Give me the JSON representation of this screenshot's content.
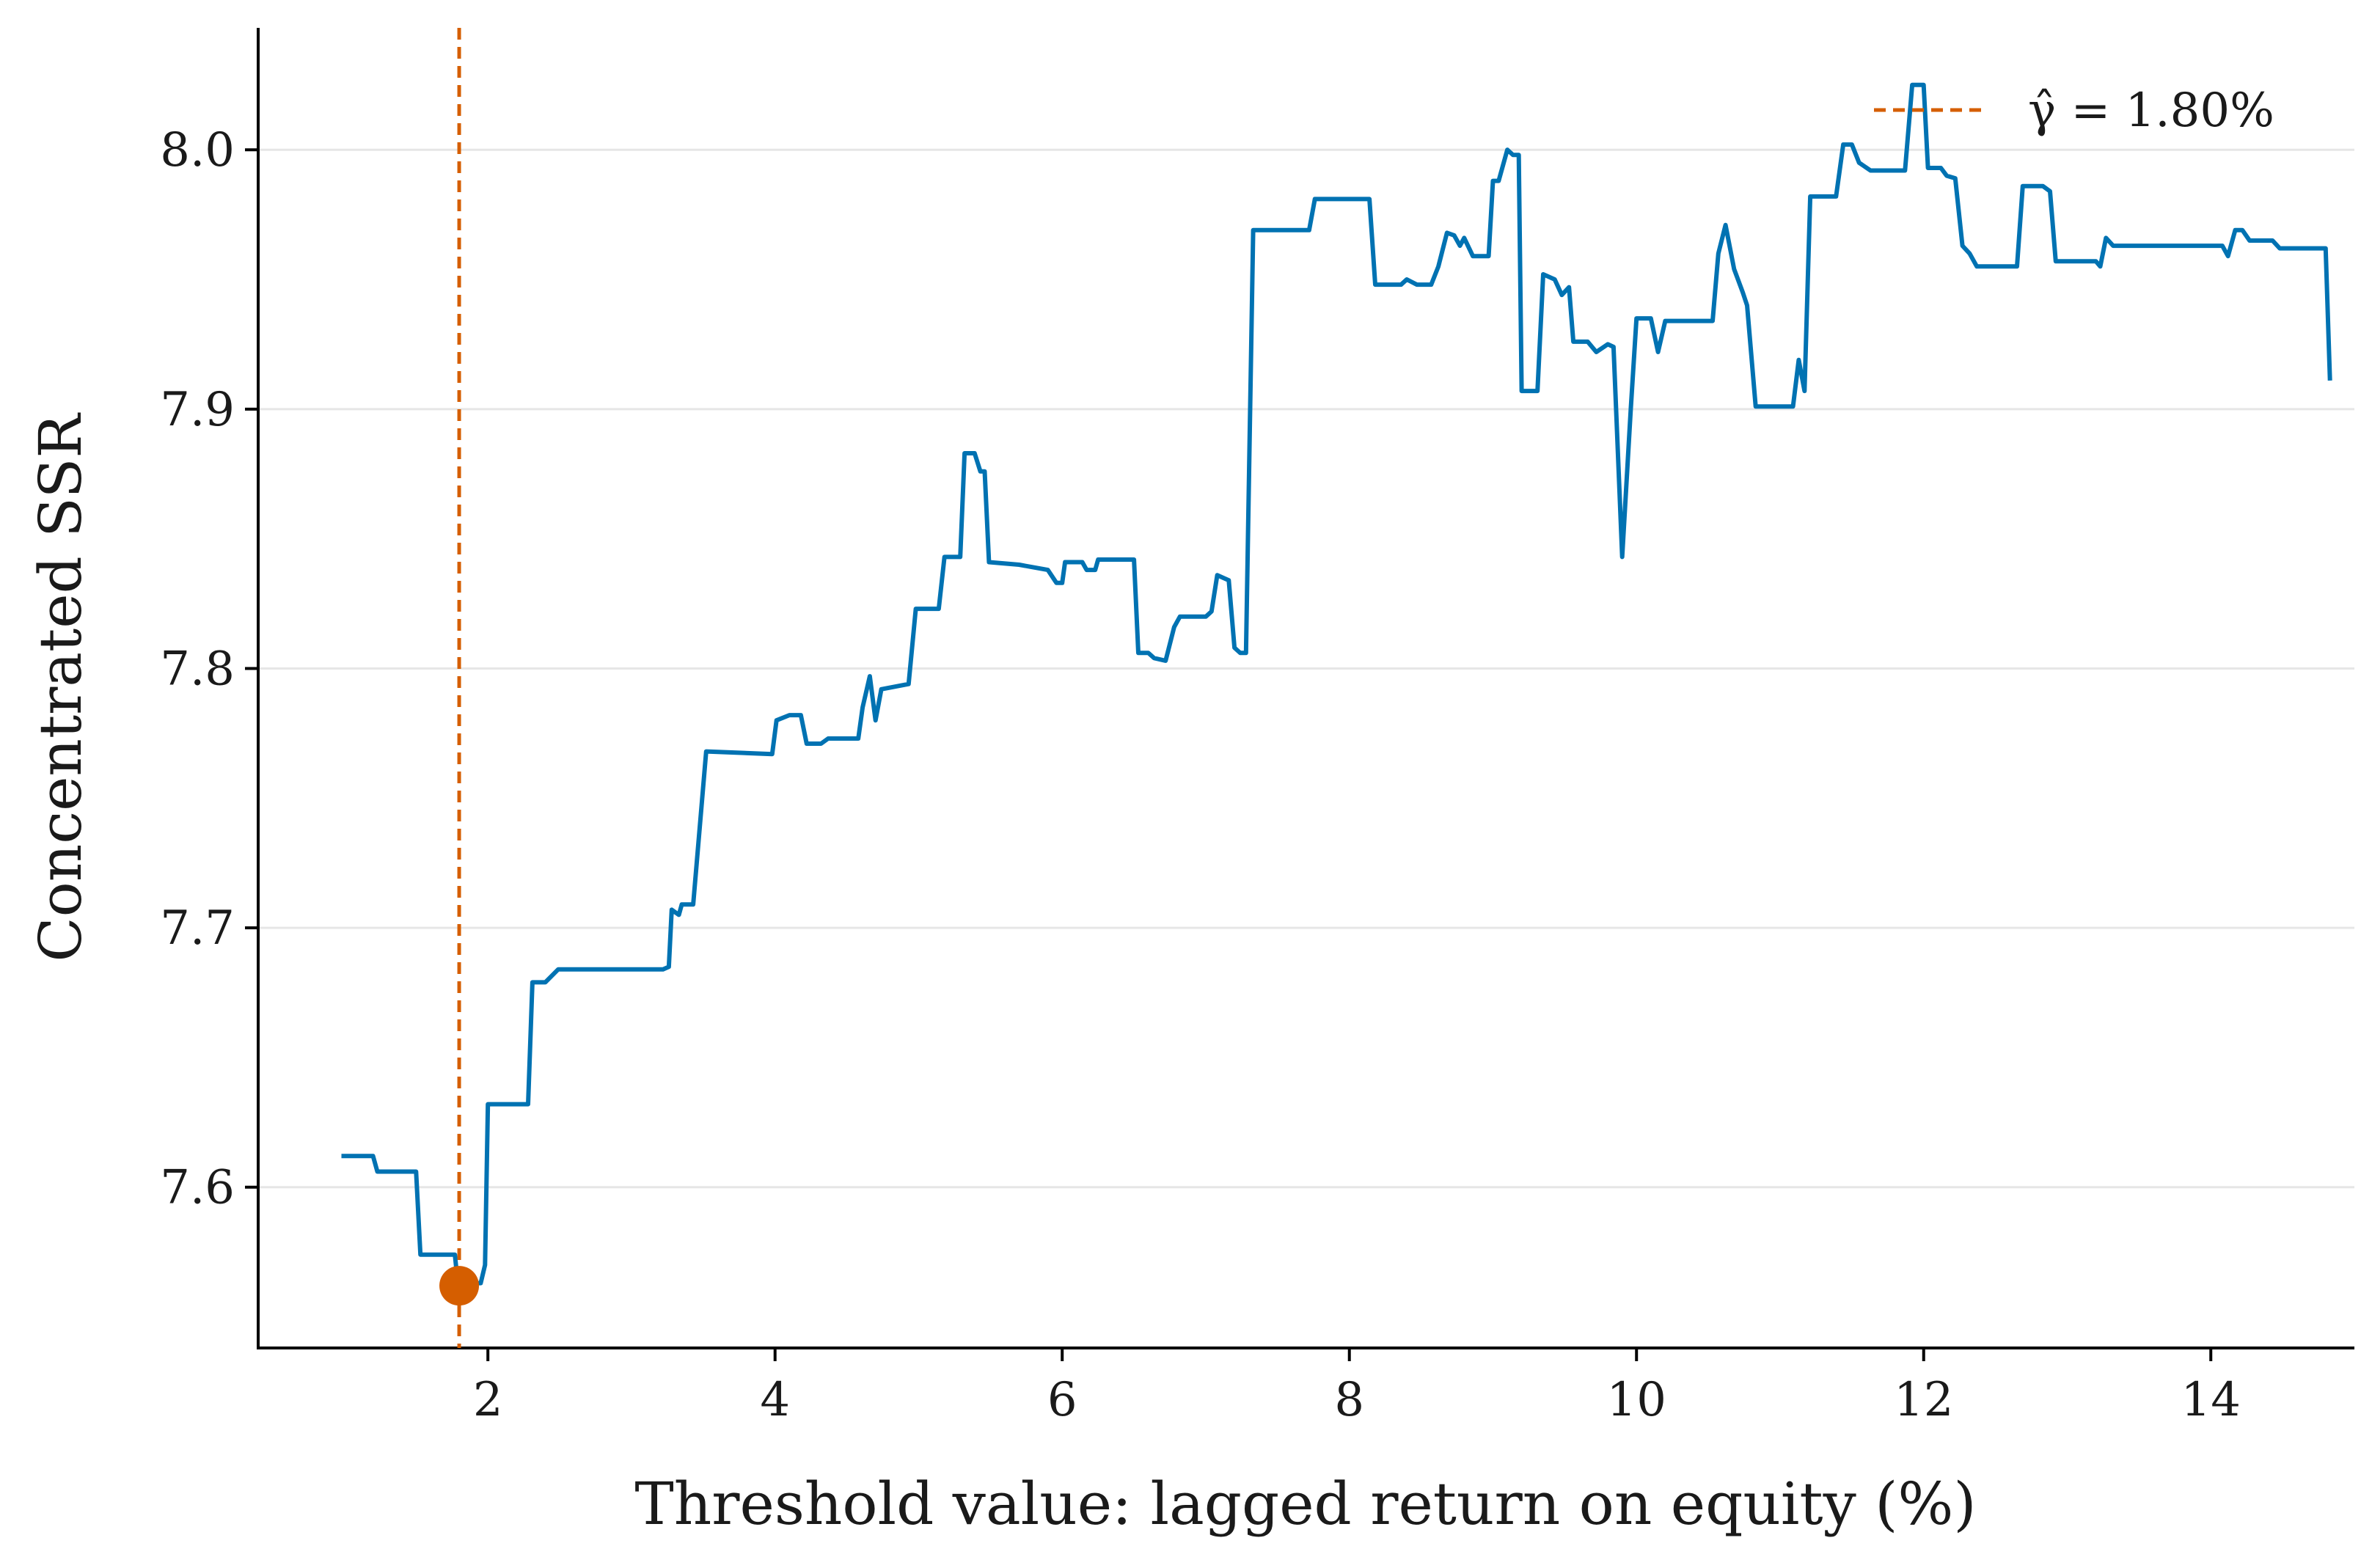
{
  "chart_data": {
    "type": "line",
    "xlabel": "Threshold value: lagged return on equity (%)",
    "ylabel": "Concentrated SSR",
    "xlim": [
      0.4,
      15.0
    ],
    "ylim": [
      7.538,
      8.047
    ],
    "xticks": [
      2,
      4,
      6,
      8,
      10,
      12,
      14
    ],
    "yticks": [
      7.6,
      7.7,
      7.8,
      7.9,
      8.0
    ],
    "ytick_labels": [
      "7.6",
      "7.7",
      "7.8",
      "7.9",
      "8.0"
    ],
    "grid": "horizontal",
    "legend": {
      "placement": "top-right",
      "entries": [
        {
          "label": "γ̂ = 1.80%",
          "style": "dashed",
          "color": "#D55E00"
        }
      ]
    },
    "colors": {
      "series": "#0072B2",
      "threshold": "#D55E00"
    },
    "threshold": {
      "x": 1.8,
      "y": 7.562
    },
    "series": [
      {
        "points": [
          [
            0.98,
            7.612
          ],
          [
            1.2,
            7.612
          ],
          [
            1.23,
            7.606
          ],
          [
            1.5,
            7.606
          ],
          [
            1.53,
            7.574
          ],
          [
            1.77,
            7.574
          ],
          [
            1.79,
            7.563
          ],
          [
            1.95,
            7.563
          ],
          [
            1.98,
            7.57
          ],
          [
            2.0,
            7.632
          ],
          [
            2.28,
            7.632
          ],
          [
            2.31,
            7.679
          ],
          [
            2.4,
            7.679
          ],
          [
            2.49,
            7.684
          ],
          [
            3.22,
            7.684
          ],
          [
            3.26,
            7.685
          ],
          [
            3.28,
            7.707
          ],
          [
            3.33,
            7.705
          ],
          [
            3.35,
            7.709
          ],
          [
            3.43,
            7.709
          ],
          [
            3.52,
            7.768
          ],
          [
            3.98,
            7.767
          ],
          [
            4.01,
            7.78
          ],
          [
            4.1,
            7.782
          ],
          [
            4.18,
            7.782
          ],
          [
            4.22,
            7.771
          ],
          [
            4.32,
            7.771
          ],
          [
            4.37,
            7.773
          ],
          [
            4.58,
            7.773
          ],
          [
            4.61,
            7.785
          ],
          [
            4.66,
            7.797
          ],
          [
            4.7,
            7.78
          ],
          [
            4.74,
            7.792
          ],
          [
            4.93,
            7.794
          ],
          [
            4.98,
            7.823
          ],
          [
            5.14,
            7.823
          ],
          [
            5.18,
            7.843
          ],
          [
            5.29,
            7.843
          ],
          [
            5.32,
            7.883
          ],
          [
            5.39,
            7.883
          ],
          [
            5.43,
            7.876
          ],
          [
            5.46,
            7.876
          ],
          [
            5.49,
            7.841
          ],
          [
            5.7,
            7.84
          ],
          [
            5.8,
            7.839
          ],
          [
            5.9,
            7.838
          ],
          [
            5.96,
            7.833
          ],
          [
            6.0,
            7.833
          ],
          [
            6.02,
            7.841
          ],
          [
            6.14,
            7.841
          ],
          [
            6.17,
            7.838
          ],
          [
            6.23,
            7.838
          ],
          [
            6.25,
            7.842
          ],
          [
            6.5,
            7.842
          ],
          [
            6.53,
            7.806
          ],
          [
            6.6,
            7.806
          ],
          [
            6.64,
            7.804
          ],
          [
            6.72,
            7.803
          ],
          [
            6.78,
            7.816
          ],
          [
            6.82,
            7.82
          ],
          [
            7.0,
            7.82
          ],
          [
            7.04,
            7.822
          ],
          [
            7.08,
            7.836
          ],
          [
            7.16,
            7.834
          ],
          [
            7.2,
            7.808
          ],
          [
            7.24,
            7.806
          ],
          [
            7.28,
            7.806
          ],
          [
            7.33,
            7.969
          ],
          [
            7.72,
            7.969
          ],
          [
            7.76,
            7.981
          ],
          [
            8.14,
            7.981
          ],
          [
            8.18,
            7.948
          ],
          [
            8.36,
            7.948
          ],
          [
            8.4,
            7.95
          ],
          [
            8.47,
            7.948
          ],
          [
            8.57,
            7.948
          ],
          [
            8.62,
            7.955
          ],
          [
            8.68,
            7.968
          ],
          [
            8.73,
            7.967
          ],
          [
            8.77,
            7.963
          ],
          [
            8.8,
            7.966
          ],
          [
            8.86,
            7.959
          ],
          [
            8.97,
            7.959
          ],
          [
            9.0,
            7.988
          ],
          [
            9.04,
            7.988
          ],
          [
            9.1,
            8.0
          ],
          [
            9.14,
            7.998
          ],
          [
            9.18,
            7.998
          ],
          [
            9.2,
            7.907
          ],
          [
            9.31,
            7.907
          ],
          [
            9.35,
            7.952
          ],
          [
            9.43,
            7.95
          ],
          [
            9.48,
            7.944
          ],
          [
            9.53,
            7.947
          ],
          [
            9.56,
            7.926
          ],
          [
            9.66,
            7.926
          ],
          [
            9.72,
            7.922
          ],
          [
            9.8,
            7.925
          ],
          [
            9.84,
            7.924
          ],
          [
            9.9,
            7.843
          ],
          [
            9.96,
            7.9
          ],
          [
            10.0,
            7.935
          ],
          [
            10.1,
            7.935
          ],
          [
            10.15,
            7.922
          ],
          [
            10.2,
            7.934
          ],
          [
            10.53,
            7.934
          ],
          [
            10.57,
            7.96
          ],
          [
            10.62,
            7.971
          ],
          [
            10.68,
            7.954
          ],
          [
            10.74,
            7.945
          ],
          [
            10.77,
            7.94
          ],
          [
            10.83,
            7.901
          ],
          [
            11.09,
            7.901
          ],
          [
            11.13,
            7.919
          ],
          [
            11.17,
            7.907
          ],
          [
            11.21,
            7.982
          ],
          [
            11.39,
            7.982
          ],
          [
            11.44,
            8.002
          ],
          [
            11.5,
            8.002
          ],
          [
            11.55,
            7.995
          ],
          [
            11.63,
            7.992
          ],
          [
            11.87,
            7.992
          ],
          [
            11.92,
            8.025
          ],
          [
            12.0,
            8.025
          ],
          [
            12.03,
            7.993
          ],
          [
            12.12,
            7.993
          ],
          [
            12.16,
            7.99
          ],
          [
            12.22,
            7.989
          ],
          [
            12.27,
            7.963
          ],
          [
            12.32,
            7.96
          ],
          [
            12.37,
            7.955
          ],
          [
            12.65,
            7.955
          ],
          [
            12.69,
            7.986
          ],
          [
            12.83,
            7.986
          ],
          [
            12.88,
            7.984
          ],
          [
            12.92,
            7.957
          ],
          [
            13.2,
            7.957
          ],
          [
            13.23,
            7.955
          ],
          [
            13.27,
            7.966
          ],
          [
            13.32,
            7.963
          ],
          [
            14.08,
            7.963
          ],
          [
            14.12,
            7.959
          ],
          [
            14.17,
            7.969
          ],
          [
            14.22,
            7.969
          ],
          [
            14.27,
            7.965
          ],
          [
            14.43,
            7.965
          ],
          [
            14.48,
            7.962
          ],
          [
            14.8,
            7.962
          ],
          [
            14.83,
            7.911
          ]
        ]
      }
    ]
  }
}
